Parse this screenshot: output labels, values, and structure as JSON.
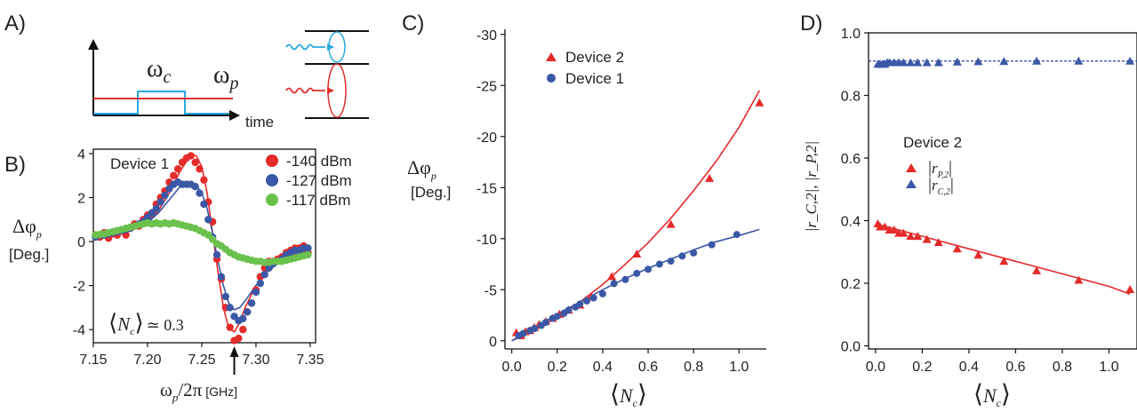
{
  "panels": {
    "a": {
      "label": "A)",
      "omega_c_base": "ω",
      "omega_c_sub": "c",
      "omega_p_base": "ω",
      "omega_p_sub": "p",
      "time_label": "time",
      "colors": {
        "control": "#29a9e0",
        "probe": "#e03030"
      }
    },
    "b": {
      "label": "B)",
      "device": "Device 1",
      "ylabel_main": "Δφ",
      "ylabel_sub": "p",
      "ylabel_unit": "[Deg.]",
      "xlabel_main": "ω",
      "xlabel_sub": "p",
      "xlabel_rest": "/2π",
      "xlabel_unit": "[GHz]",
      "annotation_n": "N",
      "annotation_sub": "c",
      "annotation_value": "≃ 0.3"
    },
    "c": {
      "label": "C)",
      "ylabel_main": "Δφ",
      "ylabel_sub": "p",
      "ylabel_unit": "[Deg.]",
      "xlabel_n": "N",
      "xlabel_sub": "c"
    },
    "d": {
      "label": "D)",
      "legend_title": "Device 2",
      "ylabel": "|r_C,2|, |r_P,2|",
      "legend_rp": "r",
      "legend_rp_sub": "P,2",
      "legend_rc": "r",
      "legend_rc_sub": "C,2",
      "xlabel_n": "N",
      "xlabel_sub": "c"
    }
  },
  "chart_data": [
    {
      "id": "B",
      "type": "scatter",
      "xlim": [
        7.15,
        7.355
      ],
      "ylim": [
        -4.6,
        4.2
      ],
      "xticks": [
        "7.15",
        "7.20",
        "7.25",
        "7.30",
        "7.35"
      ],
      "yticks": [
        "-4",
        "-2",
        "0",
        "2",
        "4"
      ],
      "series": [
        {
          "name": "-140 dBm",
          "color": "#e52a2a",
          "x": [
            7.152,
            7.156,
            7.16,
            7.164,
            7.168,
            7.172,
            7.176,
            7.18,
            7.184,
            7.188,
            7.192,
            7.196,
            7.2,
            7.204,
            7.208,
            7.212,
            7.216,
            7.22,
            7.224,
            7.228,
            7.232,
            7.236,
            7.24,
            7.244,
            7.248,
            7.252,
            7.256,
            7.26,
            7.264,
            7.268,
            7.272,
            7.276,
            7.28,
            7.284,
            7.288,
            7.292,
            7.296,
            7.3,
            7.304,
            7.308,
            7.312,
            7.316,
            7.32,
            7.324,
            7.328,
            7.332,
            7.336,
            7.34,
            7.344,
            7.348
          ],
          "y": [
            0.3,
            0.2,
            0.4,
            0.15,
            0.35,
            0.3,
            0.5,
            0.3,
            0.6,
            0.8,
            0.7,
            1.0,
            1.2,
            1.3,
            1.7,
            2.0,
            2.3,
            2.7,
            3.0,
            3.3,
            3.6,
            3.8,
            3.9,
            3.6,
            3.3,
            2.8,
            1.8,
            0.9,
            -0.8,
            -1.7,
            -3.0,
            -3.9,
            -4.5,
            -4.4,
            -4.0,
            -3.2,
            -2.8,
            -2.2,
            -1.6,
            -1.2,
            -0.9,
            -0.9,
            -0.8,
            -0.7,
            -0.5,
            -0.4,
            -0.3,
            -0.3,
            -0.2,
            -0.5
          ]
        },
        {
          "name": "-127 dBm",
          "color": "#3b58a6",
          "x": [
            7.152,
            7.156,
            7.16,
            7.164,
            7.168,
            7.172,
            7.176,
            7.18,
            7.184,
            7.188,
            7.192,
            7.196,
            7.2,
            7.204,
            7.208,
            7.212,
            7.216,
            7.22,
            7.224,
            7.228,
            7.232,
            7.236,
            7.24,
            7.244,
            7.248,
            7.252,
            7.256,
            7.26,
            7.264,
            7.268,
            7.272,
            7.276,
            7.28,
            7.284,
            7.288,
            7.292,
            7.296,
            7.3,
            7.304,
            7.308,
            7.312,
            7.316,
            7.32,
            7.324,
            7.328,
            7.332,
            7.336,
            7.34,
            7.344,
            7.348
          ],
          "y": [
            0.2,
            0.3,
            0.3,
            0.35,
            0.4,
            0.45,
            0.5,
            0.55,
            0.6,
            0.7,
            0.8,
            0.9,
            1.1,
            1.3,
            1.5,
            1.8,
            2.1,
            2.4,
            2.6,
            2.7,
            2.6,
            2.6,
            2.6,
            2.5,
            2.2,
            1.7,
            1.0,
            0.2,
            -0.6,
            -1.6,
            -2.5,
            -3.0,
            -3.4,
            -3.6,
            -3.5,
            -3.2,
            -2.8,
            -2.3,
            -1.9,
            -1.5,
            -1.2,
            -1.0,
            -0.9,
            -0.8,
            -0.6,
            -0.5,
            -0.4,
            -0.4,
            -0.3,
            -0.3
          ]
        },
        {
          "name": "-117 dBm",
          "color": "#6ac24d",
          "x": [
            7.152,
            7.156,
            7.16,
            7.164,
            7.168,
            7.172,
            7.176,
            7.18,
            7.184,
            7.188,
            7.192,
            7.196,
            7.2,
            7.204,
            7.208,
            7.212,
            7.216,
            7.22,
            7.224,
            7.228,
            7.232,
            7.236,
            7.24,
            7.244,
            7.248,
            7.252,
            7.256,
            7.26,
            7.264,
            7.268,
            7.272,
            7.276,
            7.28,
            7.284,
            7.288,
            7.292,
            7.296,
            7.3,
            7.304,
            7.308,
            7.312,
            7.316,
            7.32,
            7.324,
            7.328,
            7.332,
            7.336,
            7.34,
            7.344,
            7.348
          ],
          "y": [
            0.3,
            0.32,
            0.35,
            0.4,
            0.45,
            0.5,
            0.55,
            0.6,
            0.65,
            0.7,
            0.75,
            0.8,
            0.85,
            0.8,
            0.85,
            0.8,
            0.85,
            0.8,
            0.85,
            0.8,
            0.75,
            0.7,
            0.65,
            0.6,
            0.5,
            0.4,
            0.3,
            0.1,
            -0.1,
            -0.2,
            -0.35,
            -0.5,
            -0.6,
            -0.7,
            -0.75,
            -0.8,
            -0.85,
            -0.9,
            -0.9,
            -0.95,
            -0.95,
            -0.9,
            -0.9,
            -0.9,
            -0.85,
            -0.8,
            -0.75,
            -0.7,
            -0.65,
            -0.6
          ]
        }
      ],
      "fits": [
        {
          "color": "#e52a2a",
          "x": [
            7.15,
            7.16,
            7.17,
            7.18,
            7.19,
            7.2,
            7.21,
            7.22,
            7.23,
            7.24,
            7.245,
            7.25,
            7.255,
            7.26,
            7.265,
            7.27,
            7.275,
            7.28,
            7.285,
            7.29,
            7.3,
            7.31,
            7.32,
            7.33,
            7.34,
            7.35
          ],
          "y": [
            0.25,
            0.3,
            0.35,
            0.45,
            0.6,
            0.9,
            1.4,
            2.2,
            3.2,
            3.95,
            3.9,
            3.4,
            2.2,
            0.4,
            -1.4,
            -3.0,
            -3.95,
            -4.1,
            -3.7,
            -3.0,
            -2.0,
            -1.3,
            -0.9,
            -0.65,
            -0.5,
            -0.4
          ]
        },
        {
          "color": "#3b58a6",
          "x": [
            7.15,
            7.16,
            7.17,
            7.18,
            7.19,
            7.2,
            7.21,
            7.22,
            7.23,
            7.24,
            7.245,
            7.25,
            7.255,
            7.26,
            7.265,
            7.27,
            7.275,
            7.28,
            7.285,
            7.29,
            7.3,
            7.31,
            7.32,
            7.33,
            7.34,
            7.35
          ],
          "y": [
            0.25,
            0.3,
            0.35,
            0.45,
            0.6,
            0.85,
            1.3,
            1.9,
            2.5,
            2.65,
            2.55,
            2.2,
            1.5,
            0.4,
            -0.9,
            -2.0,
            -2.8,
            -3.1,
            -3.0,
            -2.7,
            -2.0,
            -1.4,
            -1.0,
            -0.75,
            -0.55,
            -0.45
          ]
        }
      ],
      "marker": {
        "x": 7.28
      }
    },
    {
      "id": "C",
      "type": "scatter",
      "xlim": [
        -0.03,
        1.12
      ],
      "ylim": [
        0.8,
        -30.5
      ],
      "xticks": [
        "0.0",
        "0.2",
        "0.4",
        "0.6",
        "0.8",
        "1.0"
      ],
      "yticks": [
        "0",
        "-5",
        "-10",
        "-15",
        "-20",
        "-25",
        "-30"
      ],
      "series": [
        {
          "name": "Device 2",
          "color": "#e52a2a",
          "marker": "triangle",
          "x": [
            0.02,
            0.04,
            0.06,
            0.08,
            0.1,
            0.12,
            0.15,
            0.18,
            0.21,
            0.25,
            0.3,
            0.35,
            0.44,
            0.55,
            0.7,
            0.87,
            1.09
          ],
          "y": [
            -0.8,
            -0.5,
            -0.9,
            -1.0,
            -1.3,
            -1.6,
            -1.9,
            -2.2,
            -2.6,
            -3.0,
            -3.5,
            -4.3,
            -6.3,
            -8.5,
            -11.4,
            -15.9,
            -23.3
          ]
        },
        {
          "name": "Device 1",
          "color": "#3b58a6",
          "marker": "circle",
          "x": [
            0.03,
            0.05,
            0.08,
            0.1,
            0.13,
            0.15,
            0.18,
            0.2,
            0.23,
            0.25,
            0.28,
            0.3,
            0.33,
            0.36,
            0.4,
            0.45,
            0.5,
            0.55,
            0.6,
            0.65,
            0.7,
            0.75,
            0.8,
            0.88,
            0.99
          ],
          "y": [
            -0.5,
            -0.7,
            -1.0,
            -1.2,
            -1.5,
            -1.8,
            -2.2,
            -2.4,
            -2.7,
            -3.0,
            -3.3,
            -3.6,
            -3.9,
            -4.2,
            -4.6,
            -5.6,
            -6.0,
            -6.6,
            -7.0,
            -7.5,
            -7.8,
            -8.3,
            -8.6,
            -9.4,
            -10.4
          ]
        }
      ],
      "fits": [
        {
          "color": "#e52a2a",
          "x": [
            0.0,
            0.1,
            0.2,
            0.3,
            0.4,
            0.5,
            0.6,
            0.7,
            0.8,
            0.9,
            1.0,
            1.09
          ],
          "y": [
            0.0,
            -1.0,
            -2.3,
            -3.8,
            -5.5,
            -7.5,
            -9.6,
            -12.0,
            -14.7,
            -17.6,
            -20.9,
            -24.5
          ]
        },
        {
          "color": "#3b58a6",
          "x": [
            0.0,
            0.1,
            0.2,
            0.3,
            0.4,
            0.5,
            0.6,
            0.7,
            0.8,
            0.9,
            1.0,
            1.09
          ],
          "y": [
            0.0,
            -1.3,
            -2.6,
            -3.8,
            -5.0,
            -6.1,
            -7.1,
            -8.0,
            -8.9,
            -9.7,
            -10.3,
            -10.9
          ]
        }
      ]
    },
    {
      "id": "D",
      "type": "scatter",
      "xlim": [
        -0.03,
        1.12
      ],
      "ylim": [
        -0.01,
        1.0
      ],
      "xticks": [
        "0.0",
        "0.2",
        "0.4",
        "0.6",
        "0.8",
        "1.0"
      ],
      "yticks": [
        "0.0",
        "0.2",
        "0.4",
        "0.6",
        "0.8",
        "1.0"
      ],
      "dashed_line_y": 0.91,
      "series": [
        {
          "name": "|r_P,2|",
          "color": "#e52a2a",
          "marker": "triangle",
          "x": [
            0.01,
            0.02,
            0.04,
            0.06,
            0.08,
            0.1,
            0.12,
            0.15,
            0.18,
            0.22,
            0.27,
            0.35,
            0.44,
            0.55,
            0.69,
            0.87,
            1.09
          ],
          "y": [
            0.39,
            0.38,
            0.38,
            0.37,
            0.37,
            0.36,
            0.36,
            0.35,
            0.35,
            0.34,
            0.33,
            0.31,
            0.29,
            0.27,
            0.24,
            0.21,
            0.18
          ]
        },
        {
          "name": "|r_C,2|",
          "color": "#3b58a6",
          "marker": "triangle",
          "x": [
            0.01,
            0.02,
            0.03,
            0.04,
            0.05,
            0.06,
            0.08,
            0.1,
            0.12,
            0.15,
            0.18,
            0.22,
            0.27,
            0.35,
            0.44,
            0.55,
            0.69,
            0.87,
            1.09
          ],
          "y": [
            0.9,
            0.9,
            0.9,
            0.9,
            0.905,
            0.905,
            0.905,
            0.905,
            0.905,
            0.905,
            0.905,
            0.905,
            0.905,
            0.907,
            0.908,
            0.909,
            0.91,
            0.91,
            0.91
          ]
        }
      ],
      "fits": [
        {
          "color": "#e52a2a",
          "x": [
            0.0,
            0.2,
            0.4,
            0.6,
            0.8,
            1.0,
            1.09
          ],
          "y": [
            0.39,
            0.35,
            0.31,
            0.27,
            0.23,
            0.19,
            0.165
          ]
        }
      ]
    }
  ]
}
